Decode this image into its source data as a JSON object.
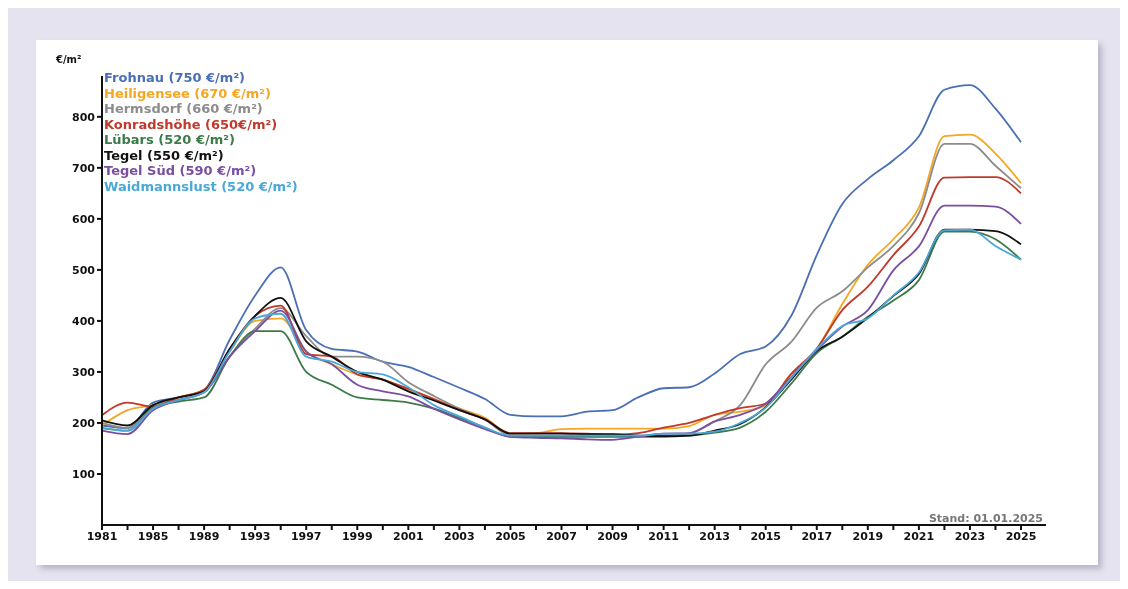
{
  "chart_data": {
    "type": "line",
    "ylabel": "€/m²",
    "annotations": [
      "Stand: 01.01.2025"
    ],
    "categories": [
      "1981",
      null,
      "1985",
      null,
      "1989",
      null,
      "1993",
      null,
      "1997",
      null,
      "1999",
      null,
      "2001",
      null,
      "2003",
      null,
      "2005",
      null,
      "2007",
      null,
      "2009",
      null,
      "2011",
      null,
      "2013",
      null,
      "2015",
      null,
      "2017",
      null,
      "2019",
      null,
      "2021",
      null,
      "2023",
      null,
      "2025"
    ],
    "ylim": [
      0,
      880
    ],
    "yticks": [
      100,
      200,
      300,
      400,
      500,
      600,
      700,
      800
    ],
    "grid": false,
    "legend": "top left",
    "marker": "none",
    "line_style": "solid",
    "series": [
      {
        "name": "Frohnau (750 €/m²)",
        "color": "#4a6fb5",
        "values": [
          195,
          190,
          240,
          250,
          265,
          363,
          450,
          505,
          382,
          345,
          340,
          320,
          310,
          290,
          269,
          247,
          216,
          213,
          213,
          222,
          225,
          250,
          268,
          270,
          297,
          335,
          350,
          410,
          529,
          629,
          678,
          715,
          762,
          853,
          862,
          816,
          750
        ]
      },
      {
        "name": "Heiligensee (670 €/m²)",
        "color": "#f5a623",
        "values": [
          195,
          225,
          235,
          250,
          265,
          340,
          400,
          405,
          340,
          315,
          295,
          285,
          265,
          247,
          228,
          210,
          179,
          180,
          188,
          189,
          189,
          189,
          189,
          194,
          216,
          222,
          235,
          296,
          345,
          433,
          510,
          560,
          622,
          762,
          765,
          728,
          670
        ]
      },
      {
        "name": "Hermsdorf (660 €/m²)",
        "color": "#8c8c8c",
        "values": [
          200,
          190,
          235,
          245,
          260,
          330,
          385,
          425,
          370,
          330,
          330,
          320,
          280,
          253,
          228,
          207,
          175,
          175,
          175,
          175,
          175,
          175,
          175,
          179,
          203,
          235,
          315,
          359,
          426,
          458,
          505,
          547,
          611,
          747,
          747,
          704,
          660
        ]
      },
      {
        "name": "Konradshöhe (650€/m²)",
        "color": "#c0392b",
        "values": [
          215,
          240,
          232,
          250,
          265,
          345,
          410,
          430,
          335,
          330,
          295,
          285,
          267,
          247,
          225,
          207,
          180,
          180,
          180,
          179,
          177,
          180,
          191,
          200,
          216,
          229,
          238,
          296,
          346,
          421,
          467,
          529,
          585,
          681,
          682,
          682,
          650
        ]
      },
      {
        "name": "Lübars (520 €/m²)",
        "color": "#3d7a4a",
        "values": [
          190,
          185,
          230,
          242,
          250,
          330,
          380,
          380,
          300,
          275,
          250,
          245,
          240,
          228,
          210,
          191,
          173,
          173,
          173,
          173,
          173,
          173,
          173,
          175,
          181,
          191,
          222,
          277,
          337,
          369,
          408,
          440,
          480,
          575,
          575,
          560,
          520
        ]
      },
      {
        "name": "Tegel (550 €/m²)",
        "color": "#111111",
        "values": [
          205,
          195,
          235,
          250,
          262,
          345,
          410,
          445,
          360,
          330,
          300,
          285,
          262,
          244,
          225,
          207,
          179,
          179,
          179,
          178,
          178,
          175,
          174,
          175,
          185,
          198,
          231,
          285,
          341,
          369,
          406,
          449,
          492,
          579,
          579,
          576,
          550
        ]
      },
      {
        "name": "Tegel Süd (590 €/m²)",
        "color": "#7a4fa0",
        "values": [
          185,
          178,
          225,
          245,
          260,
          330,
          380,
          420,
          340,
          315,
          275,
          262,
          252,
          228,
          207,
          188,
          173,
          171,
          170,
          168,
          167,
          173,
          179,
          180,
          203,
          216,
          238,
          290,
          343,
          389,
          421,
          499,
          546,
          626,
          626,
          624,
          590
        ]
      },
      {
        "name": "Waidmannslust (520 €/m²)",
        "color": "#4aa8d8",
        "values": [
          190,
          185,
          228,
          245,
          260,
          340,
          405,
          414,
          330,
          320,
          300,
          295,
          270,
          235,
          213,
          191,
          175,
          175,
          175,
          175,
          175,
          175,
          179,
          179,
          183,
          200,
          230,
          288,
          345,
          390,
          405,
          450,
          495,
          578,
          579,
          547,
          520
        ]
      }
    ]
  }
}
